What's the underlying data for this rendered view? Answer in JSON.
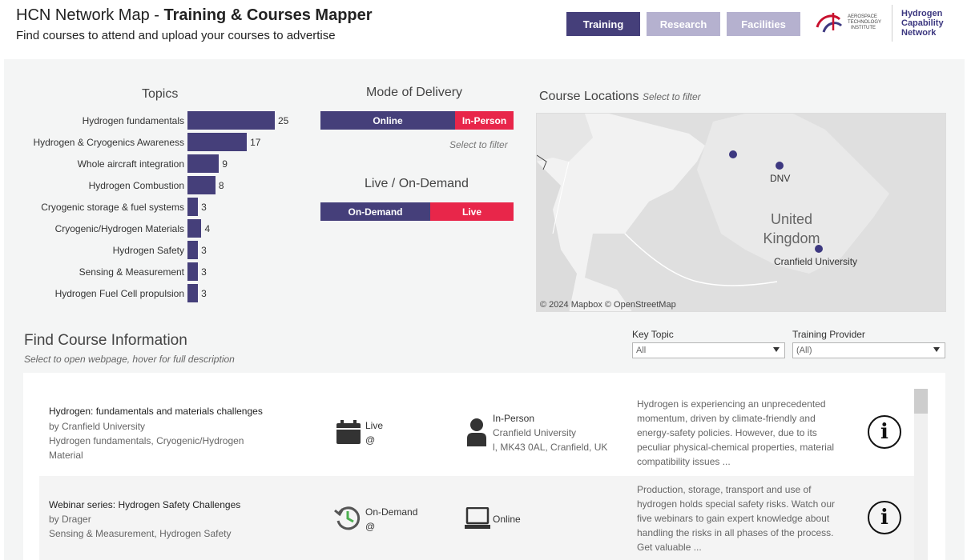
{
  "header": {
    "title_prefix": "HCN Network Map - ",
    "title_bold": "Training & Courses Mapper",
    "subtitle": "Find courses to attend and upload your courses to advertise",
    "nav": [
      {
        "label": "Training",
        "active": true
      },
      {
        "label": "Research",
        "active": false
      },
      {
        "label": "Facilities",
        "active": false
      }
    ],
    "logo_ati_lines": [
      "AEROSPACE",
      "TECHNOLOGY",
      "INSTITUTE"
    ],
    "logo_hcn_lines": [
      "Hydrogen",
      "Capability",
      "Network"
    ]
  },
  "colors": {
    "accent": "#453f7a",
    "accent_light": "#b5b1cf",
    "red": "#e8264a"
  },
  "topics": {
    "title": "Topics",
    "chart_data": {
      "type": "bar",
      "orientation": "horizontal",
      "categories": [
        "Hydrogen fundamentals",
        "Hydrogen & Cryogenics Awareness",
        "Whole aircraft integration",
        "Hydrogen Combustion",
        "Cryogenic storage & fuel systems",
        "Cryogenic/Hydrogen Materials",
        "Hydrogen Safety",
        "Sensing & Measurement",
        "Hydrogen Fuel Cell propulsion"
      ],
      "values": [
        25,
        17,
        9,
        8,
        3,
        4,
        3,
        3,
        3
      ]
    }
  },
  "mode": {
    "title": "Mode of Delivery",
    "segments": [
      {
        "label": "Online"
      },
      {
        "label": "In-Person"
      }
    ],
    "hint": "Select to filter"
  },
  "live": {
    "title": "Live / On-Demand",
    "segments": [
      {
        "label": "On-Demand"
      },
      {
        "label": "Live"
      }
    ]
  },
  "map": {
    "title": "Course Locations",
    "hint": "Select to filter",
    "country_lines": [
      "United",
      "Kingdom"
    ],
    "labels": [
      "DNV",
      "Cranfield University"
    ],
    "attribution": "© 2024 Mapbox  © OpenStreetMap"
  },
  "find": {
    "title": "Find Course Information",
    "hint": "Select to open webpage, hover for full description",
    "filters": [
      {
        "label": "Key Topic",
        "value": "All"
      },
      {
        "label": "Training Provider",
        "value": "(All)"
      }
    ]
  },
  "courses": [
    {
      "title": "Hydrogen: fundamentals and materials challenges",
      "provider": "by Cranfield University",
      "topics": "Hydrogen fundamentals, Cryogenic/Hydrogen Material",
      "timing_icon": "calendar-icon",
      "timing": "Live",
      "timing_at": "@",
      "mode_icon": "person-icon",
      "mode": "In-Person",
      "location_1": "Cranfield University",
      "location_2": "l, MK43 0AL, Cranfield, UK",
      "description": "Hydrogen is experiencing an unprecedented momentum, driven by climate-friendly and energy-safety policies. However, due to its peculiar physical-chemical properties, material compatibility issues ..."
    },
    {
      "title": "Webinar series: Hydrogen Safety Challenges",
      "provider": "by Drager",
      "topics": "Sensing & Measurement, Hydrogen Safety",
      "timing_icon": "history-icon",
      "timing": "On-Demand",
      "timing_at": "@",
      "mode_icon": "laptop-icon",
      "mode": "Online",
      "description": "Production, storage, transport and use of hydrogen holds special safety risks. Watch our five webinars to gain expert knowledge about handling the risks in all phases of the process. Get valuable ..."
    }
  ]
}
